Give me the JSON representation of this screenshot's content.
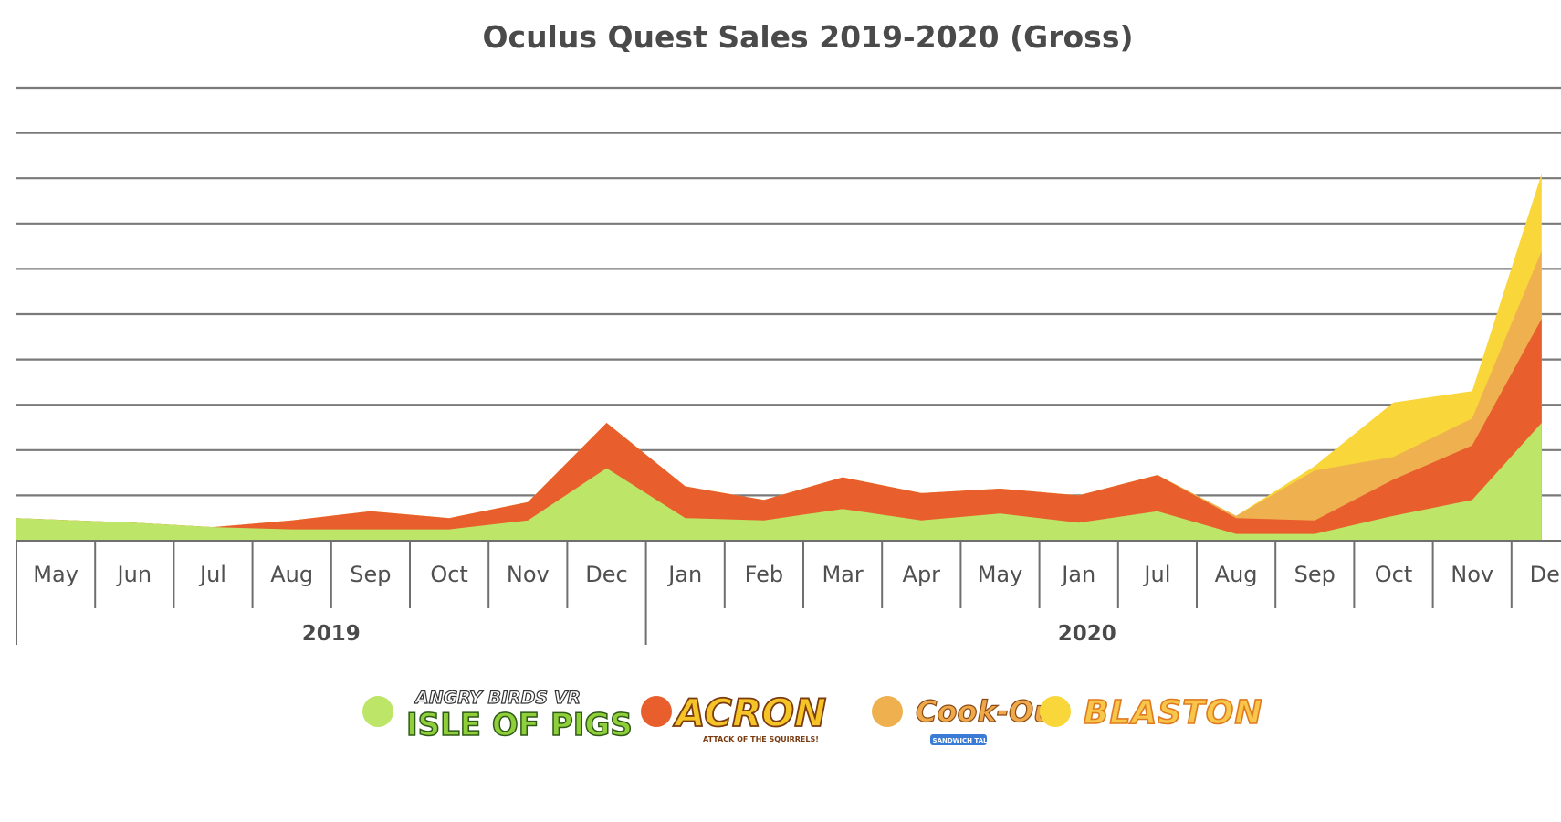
{
  "chart_data": {
    "type": "area",
    "title": "Oculus Quest Sales 2019-2020 (Gross)",
    "xlabel": "",
    "ylabel": "",
    "stacked": true,
    "grid": true,
    "y_ticks_labeled": false,
    "ylim": [
      0,
      10
    ],
    "categories": [
      "May",
      "Jun",
      "Jul",
      "Aug",
      "Sep",
      "Oct",
      "Nov",
      "Dec",
      "Jan",
      "Feb",
      "Mar",
      "Apr",
      "May",
      "Jan",
      "Jul",
      "Aug",
      "Sep",
      "Oct",
      "Nov",
      "Dec"
    ],
    "year_groups": [
      {
        "label": "2019",
        "start": 0,
        "end": 7
      },
      {
        "label": "2020",
        "start": 8,
        "end": 19
      }
    ],
    "legend_position": "bottom",
    "series": [
      {
        "name": "Angry Birds VR: Isle of Pigs",
        "color": "#bde567",
        "values": [
          0.5,
          0.4,
          0.3,
          0.25,
          0.25,
          0.25,
          0.45,
          1.6,
          0.5,
          0.45,
          0.7,
          0.45,
          0.6,
          0.4,
          0.65,
          0.15,
          0.15,
          0.55,
          0.9,
          2.6
        ]
      },
      {
        "name": "Acron: Attack of the Squirrels!",
        "color": "#e85f2d",
        "values": [
          0,
          0,
          0,
          0.2,
          0.4,
          0.25,
          0.4,
          1.0,
          0.7,
          0.45,
          0.7,
          0.6,
          0.55,
          0.6,
          0.8,
          0.35,
          0.3,
          0.8,
          1.2,
          2.3
        ]
      },
      {
        "name": "Cook-Out: A Sandwich Tale",
        "color": "#efb14f",
        "values": [
          0,
          0,
          0,
          0,
          0,
          0,
          0,
          0,
          0,
          0,
          0,
          0,
          0,
          0,
          0,
          0.05,
          1.1,
          0.5,
          0.6,
          1.5
        ]
      },
      {
        "name": "Blaston",
        "color": "#f9d63a",
        "values": [
          0,
          0,
          0,
          0,
          0,
          0,
          0,
          0,
          0,
          0,
          0,
          0,
          0,
          0,
          0,
          0,
          0.1,
          1.2,
          0.6,
          1.7
        ]
      }
    ]
  },
  "legend": [
    {
      "logo_text_top": "ANGRY BIRDS VR",
      "logo_text_bottom": "ISLE OF PIGS",
      "color": "#bde567"
    },
    {
      "logo_text_top": "ACRON",
      "logo_text_bottom": "ATTACK OF THE SQUIRRELS!",
      "color": "#e85f2d"
    },
    {
      "logo_text_top": "Cook-Out",
      "logo_text_bottom": "A SANDWICH TALE",
      "color": "#efb14f"
    },
    {
      "logo_text_top": "BLASTON",
      "logo_text_bottom": "",
      "color": "#f9d63a"
    }
  ]
}
